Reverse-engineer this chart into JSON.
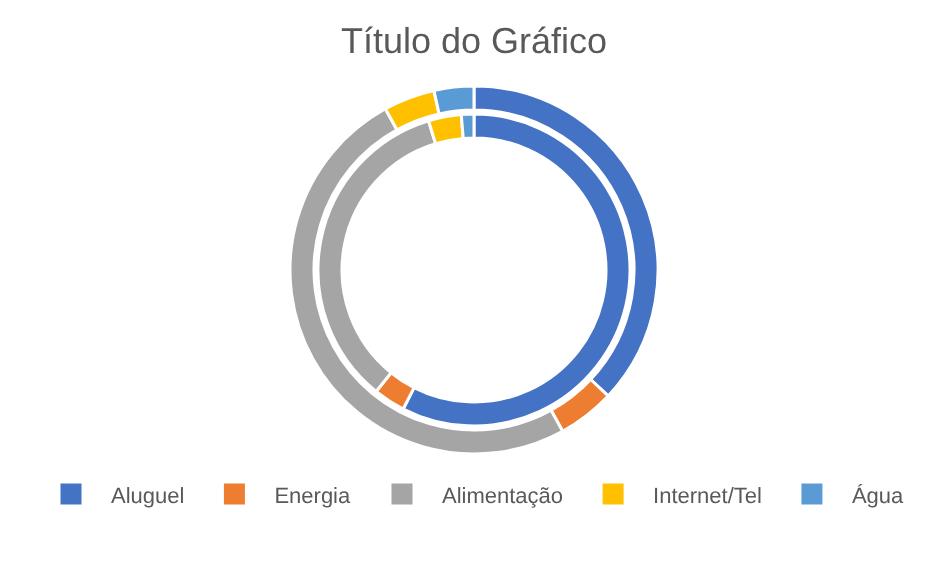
{
  "chart_data": {
    "type": "donut",
    "title": "Título do Gráfico",
    "categories": [
      "Aluguel",
      "Energia",
      "Alimentação",
      "Internet/Tel",
      "Água"
    ],
    "colors": [
      "#4472c4",
      "#ed7d31",
      "#a5a5a5",
      "#ffc000",
      "#5b9bd5"
    ],
    "series": [
      {
        "values": [
          57.5,
          3.3,
          34.5,
          3.4,
          1.3
        ]
      },
      {
        "values": [
          37,
          5,
          50,
          4.5,
          3.5
        ]
      }
    ],
    "legend": "bottom"
  }
}
